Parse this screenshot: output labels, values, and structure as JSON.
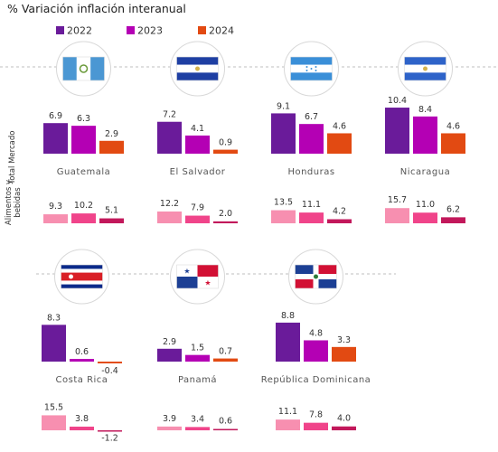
{
  "chart_data": {
    "type": "bar",
    "title": "% Variación inflación interanual",
    "legend": [
      "2022",
      "2023",
      "2024"
    ],
    "colors": {
      "total": [
        "#6a1b9a",
        "#b400b4",
        "#e24a12"
      ],
      "food": [
        "#f78fb0",
        "#f0448a",
        "#c2185b"
      ]
    },
    "row_labels": {
      "total": "Total Mercado",
      "food": "Alimentos y bebidas"
    },
    "ylim": [
      -1.2,
      15.7
    ],
    "countries": [
      {
        "name": "Guatemala",
        "flag": "guatemala",
        "total": [
          6.9,
          6.3,
          2.9
        ],
        "food": [
          9.3,
          10.2,
          5.1
        ],
        "total_labels": [
          "6.9",
          "6.3",
          "2.9"
        ],
        "food_labels": [
          "9.3",
          "10.2",
          "5.1"
        ]
      },
      {
        "name": "El Salvador",
        "flag": "el-salvador",
        "total": [
          7.2,
          4.1,
          0.9
        ],
        "food": [
          12.2,
          7.9,
          2.0
        ],
        "total_labels": [
          "7.2",
          "4.1",
          "0.9"
        ],
        "food_labels": [
          "12.2",
          "7.9",
          "2.0"
        ]
      },
      {
        "name": "Honduras",
        "flag": "honduras",
        "total": [
          9.1,
          6.7,
          4.6
        ],
        "food": [
          13.5,
          11.1,
          4.2
        ],
        "total_labels": [
          "9.1",
          "6.7",
          "4.6"
        ],
        "food_labels": [
          "13.5",
          "11.1",
          "4.2"
        ]
      },
      {
        "name": "Nicaragua",
        "flag": "nicaragua",
        "total": [
          10.4,
          8.4,
          4.6
        ],
        "food": [
          15.7,
          11.0,
          6.2
        ],
        "total_labels": [
          "10.4",
          "8.4",
          "4.6"
        ],
        "food_labels": [
          "15.7",
          "11.0",
          "6.2"
        ]
      },
      {
        "name": "Costa Rica",
        "flag": "costa-rica",
        "total": [
          8.3,
          0.6,
          -0.4
        ],
        "food": [
          15.5,
          3.8,
          -1.2
        ],
        "total_labels": [
          "8.3",
          "0.6",
          "-0.4"
        ],
        "food_labels": [
          "15.5",
          "3.8",
          "-1.2"
        ]
      },
      {
        "name": "Panamá",
        "flag": "panama",
        "total": [
          2.9,
          1.5,
          0.7
        ],
        "food": [
          3.9,
          3.4,
          0.6
        ],
        "total_labels": [
          "2.9",
          "1.5",
          "0.7"
        ],
        "food_labels": [
          "3.9",
          "3.4",
          "0.6"
        ]
      },
      {
        "name": "República Dominicana",
        "flag": "dominican-republic",
        "total": [
          8.8,
          4.8,
          3.3
        ],
        "food": [
          11.1,
          7.8,
          4.0
        ],
        "total_labels": [
          "8.8",
          "4.8",
          "3.3"
        ],
        "food_labels": [
          "11.1",
          "7.8",
          "4.0"
        ]
      }
    ]
  }
}
